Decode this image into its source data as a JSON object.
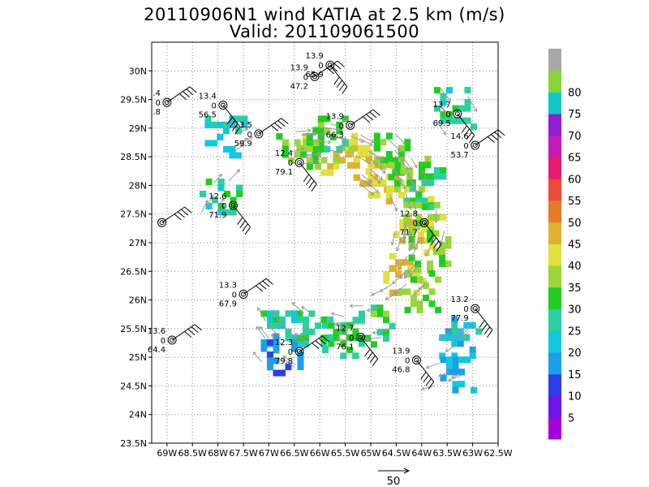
{
  "chart_data": {
    "type": "heatmap",
    "title": "20110906N1 wind KATIA at 2.5 km (m/s)",
    "subtitle": "Valid: 201109061500",
    "xlabel": "",
    "ylabel": "",
    "x_ticks": [
      "69W",
      "68.5W",
      "68W",
      "67.5W",
      "67W",
      "66.5W",
      "66W",
      "65.5W",
      "65W",
      "64.5W",
      "64W",
      "63.5W",
      "63W",
      "62.5W"
    ],
    "y_ticks": [
      "30N",
      "29.5N",
      "29N",
      "28.5N",
      "28N",
      "27.5N",
      "27N",
      "26.5N",
      "26N",
      "25.5N",
      "25N",
      "24.5N",
      "24N",
      "23.5N"
    ],
    "xlim": [
      -69.3,
      -62.5
    ],
    "ylim": [
      23.5,
      30.5
    ],
    "grid": true,
    "colorbar": {
      "labels": [
        "5",
        "10",
        "15",
        "20",
        "25",
        "30",
        "35",
        "40",
        "45",
        "50",
        "55",
        "60",
        "65",
        "70",
        "75",
        "80"
      ],
      "colors": [
        "#a600d9",
        "#6e14ea",
        "#2b3ee8",
        "#1aa0e8",
        "#12c8e0",
        "#2ad0a0",
        "#22cc22",
        "#9ad63a",
        "#e2e03a",
        "#e0b030",
        "#e87a28",
        "#ec4a3c",
        "#e81c6c",
        "#c81ab4",
        "#8f20d4",
        "#14c8c8",
        "#86d43a",
        "#a8a8a8"
      ]
    },
    "reference_vector": "50",
    "cells": [
      {
        "lon": -65.5,
        "lat": 28.6,
        "value": 45
      },
      {
        "lon": -65.1,
        "lat": 28.3,
        "value": 45
      },
      {
        "lon": -64.7,
        "lat": 28.1,
        "value": 43
      },
      {
        "lon": -64.2,
        "lat": 27.2,
        "value": 44
      },
      {
        "lon": -64.4,
        "lat": 26.5,
        "value": 45
      },
      {
        "lon": -66.1,
        "lat": 28.6,
        "value": 40
      },
      {
        "lon": -65.8,
        "lat": 28.9,
        "value": 33
      },
      {
        "lon": -66.5,
        "lat": 28.7,
        "value": 34
      },
      {
        "lon": -64.7,
        "lat": 28.6,
        "value": 34
      },
      {
        "lon": -64.3,
        "lat": 28.2,
        "value": 34
      },
      {
        "lon": -64.0,
        "lat": 28.0,
        "value": 30
      },
      {
        "lon": -64.0,
        "lat": 27.5,
        "value": 38
      },
      {
        "lon": -63.9,
        "lat": 26.9,
        "value": 36
      },
      {
        "lon": -64.1,
        "lat": 26.2,
        "value": 36
      },
      {
        "lon": -65.0,
        "lat": 25.6,
        "value": 32
      },
      {
        "lon": -65.6,
        "lat": 25.4,
        "value": 30
      },
      {
        "lon": -66.1,
        "lat": 25.5,
        "value": 30
      },
      {
        "lon": -66.8,
        "lat": 25.5,
        "value": 27
      },
      {
        "lon": -63.3,
        "lat": 25.4,
        "value": 22
      },
      {
        "lon": -63.4,
        "lat": 24.8,
        "value": 20
      },
      {
        "lon": -67.9,
        "lat": 28.9,
        "value": 24
      },
      {
        "lon": -63.4,
        "lat": 29.4,
        "value": 27
      },
      {
        "lon": -68.0,
        "lat": 27.8,
        "value": 28
      },
      {
        "lon": -66.8,
        "lat": 25.1,
        "value": 16
      }
    ],
    "station_plots": [
      {
        "lon": -69.0,
        "lat": 29.45,
        "top": ".4",
        "mid": "0",
        "bottom": ".8"
      },
      {
        "lon": -67.9,
        "lat": 29.4,
        "top": "13.4",
        "mid": "0",
        "bottom": "56.5"
      },
      {
        "lon": -67.2,
        "lat": 28.9,
        "top": "13.5",
        "mid": "0",
        "bottom": "59.9"
      },
      {
        "lon": -66.4,
        "lat": 28.4,
        "top": "12.4",
        "mid": "0",
        "bottom": "79.1"
      },
      {
        "lon": -66.1,
        "lat": 29.9,
        "top": "13.9",
        "mid": "0",
        "bottom": "47.2"
      },
      {
        "lon": -65.8,
        "lat": 30.1,
        "top": "13.9",
        "mid": "0",
        "bottom": "65.9"
      },
      {
        "lon": -65.4,
        "lat": 29.05,
        "top": "13.9",
        "mid": "0",
        "bottom": "66.3"
      },
      {
        "lon": -63.3,
        "lat": 29.25,
        "top": "13.7",
        "mid": "0",
        "bottom": "69.5"
      },
      {
        "lon": -62.95,
        "lat": 28.7,
        "top": "14.6",
        "mid": "0",
        "bottom": "53.7"
      },
      {
        "lon": -67.7,
        "lat": 27.65,
        "top": "12.6",
        "mid": "0",
        "bottom": "71.9"
      },
      {
        "lon": -69.1,
        "lat": 27.35,
        "top": "",
        "mid": "",
        "bottom": ""
      },
      {
        "lon": -63.95,
        "lat": 27.35,
        "top": "12.8",
        "mid": "0",
        "bottom": "71.7"
      },
      {
        "lon": -67.5,
        "lat": 26.1,
        "top": "13.3",
        "mid": "0",
        "bottom": "67.9"
      },
      {
        "lon": -62.95,
        "lat": 25.85,
        "top": "13.2",
        "mid": "0",
        "bottom": "77.9"
      },
      {
        "lon": -68.9,
        "lat": 25.3,
        "top": "13.6",
        "mid": "0",
        "bottom": "64.4"
      },
      {
        "lon": -65.2,
        "lat": 25.35,
        "top": "12.7",
        "mid": "0",
        "bottom": "76.1"
      },
      {
        "lon": -66.4,
        "lat": 25.1,
        "top": "12.3",
        "mid": "0",
        "bottom": "79.8"
      },
      {
        "lon": -64.1,
        "lat": 24.95,
        "top": "13.9",
        "mid": "0",
        "bottom": "46.8"
      }
    ]
  }
}
